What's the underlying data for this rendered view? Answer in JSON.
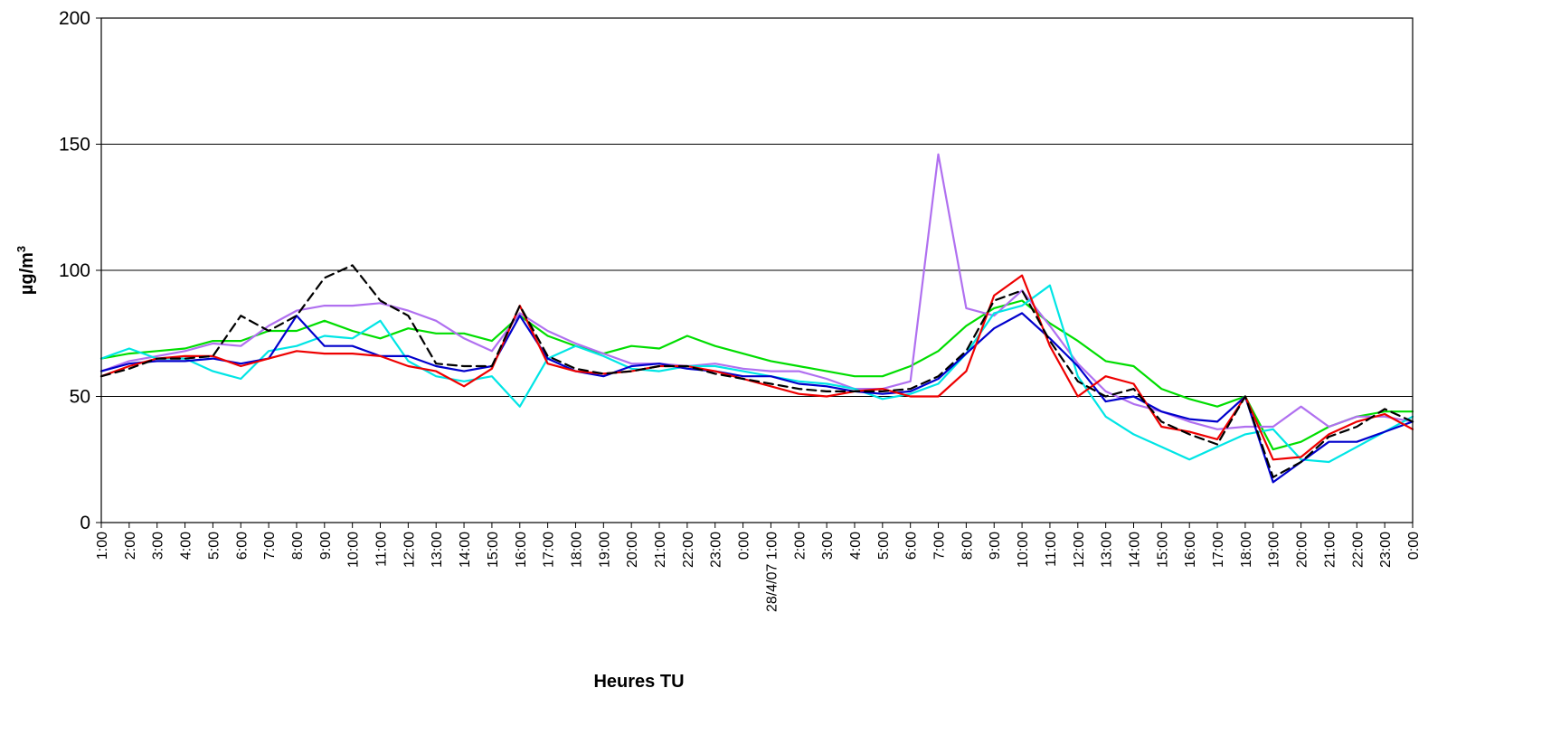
{
  "chart_data": {
    "type": "line",
    "title": "",
    "xlabel": "Heures TU",
    "ylabel": "µg/m",
    "ylabel_sup": "3",
    "ylim": [
      0,
      200
    ],
    "yticks": [
      0,
      50,
      100,
      150,
      200
    ],
    "grid": "horizontal",
    "legend": "none",
    "x_labels": [
      "1:00",
      "2:00",
      "3:00",
      "4:00",
      "5:00",
      "6:00",
      "7:00",
      "8:00",
      "9:00",
      "10:00",
      "11:00",
      "12:00",
      "13:00",
      "14:00",
      "15:00",
      "16:00",
      "17:00",
      "18:00",
      "19:00",
      "20:00",
      "21:00",
      "22:00",
      "23:00",
      "0:00",
      "28/4/07 1:00",
      "2:00",
      "3:00",
      "4:00",
      "5:00",
      "6:00",
      "7:00",
      "8:00",
      "9:00",
      "10:00",
      "11:00",
      "12:00",
      "13:00",
      "14:00",
      "15:00",
      "16:00",
      "17:00",
      "18:00",
      "19:00",
      "20:00",
      "21:00",
      "22:00",
      "23:00",
      "0:00"
    ],
    "series": [
      {
        "color": "#00dd00",
        "dash": "",
        "values": [
          65,
          67,
          68,
          69,
          72,
          72,
          76,
          76,
          80,
          76,
          73,
          77,
          75,
          75,
          72,
          82,
          74,
          70,
          67,
          70,
          69,
          74,
          70,
          67,
          64,
          62,
          60,
          58,
          58,
          62,
          68,
          78,
          85,
          88,
          79,
          72,
          64,
          62,
          53,
          49,
          46,
          50,
          29,
          32,
          38,
          42,
          44,
          44
        ]
      },
      {
        "color": "#b070f0",
        "dash": "",
        "values": [
          60,
          64,
          66,
          68,
          71,
          70,
          78,
          84,
          86,
          86,
          87,
          84,
          80,
          73,
          68,
          83,
          76,
          71,
          67,
          63,
          63,
          62,
          63,
          61,
          60,
          60,
          57,
          53,
          53,
          56,
          146,
          85,
          82,
          92,
          78,
          63,
          52,
          47,
          44,
          40,
          37,
          38,
          38,
          46,
          38,
          42,
          42,
          40
        ]
      },
      {
        "color": "#00e5e5",
        "dash": "",
        "values": [
          65,
          69,
          65,
          65,
          60,
          57,
          68,
          70,
          74,
          73,
          80,
          64,
          58,
          56,
          58,
          46,
          65,
          70,
          66,
          61,
          60,
          62,
          62,
          60,
          58,
          56,
          55,
          53,
          49,
          51,
          55,
          67,
          83,
          86,
          94,
          58,
          42,
          35,
          30,
          25,
          30,
          35,
          37,
          25,
          24,
          30,
          36,
          42
        ]
      },
      {
        "color": "#0000cc",
        "dash": "",
        "values": [
          60,
          63,
          64,
          64,
          65,
          63,
          65,
          82,
          70,
          70,
          66,
          66,
          62,
          60,
          62,
          82,
          65,
          60,
          58,
          62,
          63,
          61,
          60,
          58,
          58,
          55,
          54,
          52,
          51,
          52,
          57,
          67,
          77,
          83,
          73,
          62,
          48,
          50,
          44,
          41,
          40,
          50,
          16,
          24,
          32,
          32,
          36,
          40
        ]
      },
      {
        "color": "#ee0000",
        "dash": "",
        "values": [
          58,
          62,
          65,
          66,
          66,
          62,
          65,
          68,
          67,
          67,
          66,
          62,
          60,
          54,
          61,
          86,
          63,
          60,
          59,
          60,
          62,
          62,
          60,
          57,
          54,
          51,
          50,
          52,
          53,
          50,
          50,
          60,
          90,
          98,
          70,
          50,
          58,
          55,
          38,
          36,
          33,
          50,
          25,
          26,
          35,
          40,
          43,
          37
        ]
      },
      {
        "color": "#000000",
        "dash": "10,6",
        "values": [
          58,
          61,
          65,
          65,
          66,
          82,
          76,
          82,
          97,
          102,
          88,
          82,
          63,
          62,
          62,
          86,
          66,
          61,
          59,
          60,
          62,
          62,
          59,
          57,
          55,
          53,
          52,
          52,
          52,
          53,
          58,
          68,
          88,
          92,
          72,
          56,
          50,
          53,
          40,
          35,
          31,
          50,
          18,
          24,
          34,
          38,
          45,
          40
        ]
      }
    ]
  }
}
